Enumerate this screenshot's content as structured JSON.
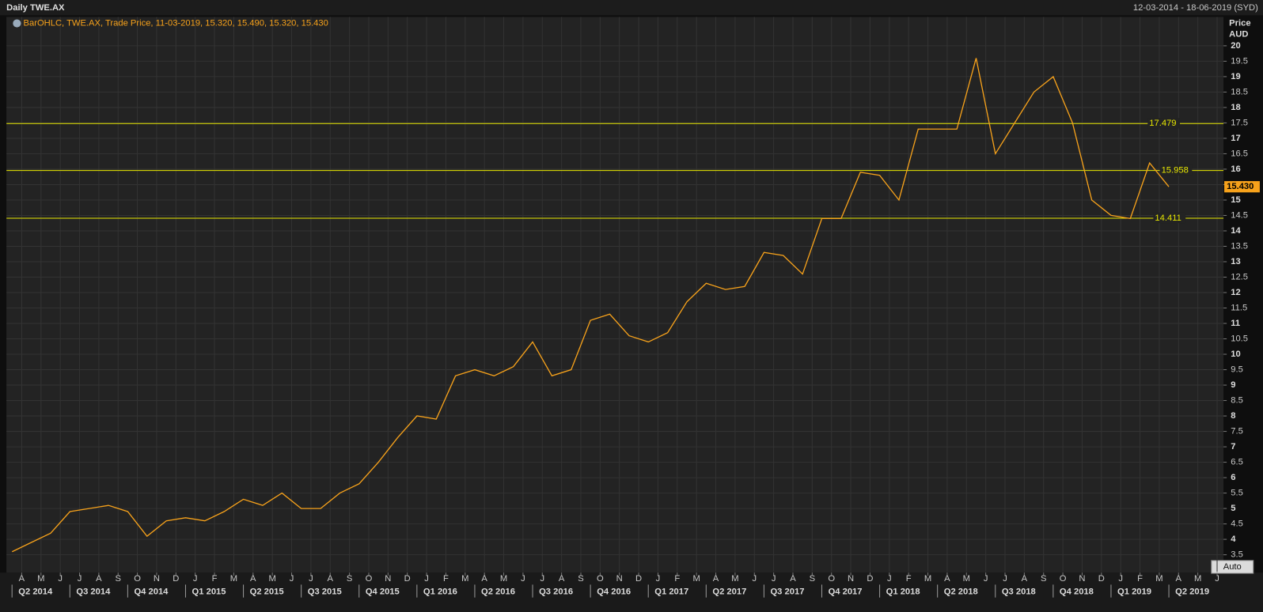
{
  "chart_data": {
    "type": "line",
    "title": "Daily TWE.AX",
    "date_range": "12-03-2014 - 18-06-2019 (SYD)",
    "y_label": "Price",
    "y_unit": "AUD",
    "button": "Auto",
    "grid": true,
    "series": [
      {
        "name": "BarOHLC, TWE.AX, Trade Price, 11-03-2019, 15.320, 15.490, 15.320, 15.430",
        "color": "#f7a21b",
        "x": [
          "2014-03",
          "2014-04",
          "2014-05",
          "2014-06",
          "2014-07",
          "2014-08",
          "2014-09",
          "2014-10",
          "2014-11",
          "2014-12",
          "2015-01",
          "2015-02",
          "2015-03",
          "2015-04",
          "2015-05",
          "2015-06",
          "2015-07",
          "2015-08",
          "2015-09",
          "2015-10",
          "2015-11",
          "2015-12",
          "2016-01",
          "2016-02",
          "2016-03",
          "2016-04",
          "2016-05",
          "2016-06",
          "2016-07",
          "2016-08",
          "2016-09",
          "2016-10",
          "2016-11",
          "2016-12",
          "2017-01",
          "2017-02",
          "2017-03",
          "2017-04",
          "2017-05",
          "2017-06",
          "2017-07",
          "2017-08",
          "2017-09",
          "2017-10",
          "2017-11",
          "2017-12",
          "2018-01",
          "2018-02",
          "2018-03",
          "2018-04",
          "2018-05",
          "2018-06",
          "2018-07",
          "2018-08",
          "2018-09",
          "2018-10",
          "2018-11",
          "2018-12",
          "2019-01",
          "2019-02",
          "2019-03"
        ],
        "values": [
          3.6,
          3.9,
          4.2,
          4.9,
          5.0,
          5.1,
          4.9,
          4.1,
          4.6,
          4.7,
          4.6,
          4.9,
          5.3,
          5.1,
          5.5,
          5.0,
          5.0,
          5.5,
          5.8,
          6.5,
          7.3,
          8.0,
          7.9,
          9.3,
          9.5,
          9.3,
          9.6,
          10.4,
          9.3,
          9.5,
          11.1,
          11.3,
          10.6,
          10.4,
          10.7,
          11.7,
          12.3,
          12.1,
          12.2,
          13.3,
          13.2,
          12.6,
          14.4,
          14.4,
          15.9,
          15.8,
          15.0,
          17.3,
          17.3,
          17.3,
          19.6,
          16.5,
          17.5,
          18.5,
          19.0,
          17.5,
          15.0,
          14.5,
          14.4,
          16.2,
          15.43
        ]
      }
    ],
    "xlim": [
      "2014-03",
      "2019-07"
    ],
    "xticks": [
      {
        "value": "2014-04",
        "label": "A"
      },
      {
        "value": "2014-05",
        "label": "M"
      },
      {
        "value": "2014-06",
        "label": "J"
      },
      {
        "value": "2014-07",
        "label": "J"
      },
      {
        "value": "2014-08",
        "label": "A"
      },
      {
        "value": "2014-09",
        "label": "S"
      },
      {
        "value": "2014-10",
        "label": "O"
      },
      {
        "value": "2014-11",
        "label": "N"
      },
      {
        "value": "2014-12",
        "label": "D"
      },
      {
        "value": "2015-01",
        "label": "J"
      },
      {
        "value": "2015-02",
        "label": "F"
      },
      {
        "value": "2015-03",
        "label": "M"
      },
      {
        "value": "2015-04",
        "label": "A"
      },
      {
        "value": "2015-05",
        "label": "M"
      },
      {
        "value": "2015-06",
        "label": "J"
      },
      {
        "value": "2015-07",
        "label": "J"
      },
      {
        "value": "2015-08",
        "label": "A"
      },
      {
        "value": "2015-09",
        "label": "S"
      },
      {
        "value": "2015-10",
        "label": "O"
      },
      {
        "value": "2015-11",
        "label": "N"
      },
      {
        "value": "2015-12",
        "label": "D"
      },
      {
        "value": "2016-01",
        "label": "J"
      },
      {
        "value": "2016-02",
        "label": "F"
      },
      {
        "value": "2016-03",
        "label": "M"
      },
      {
        "value": "2016-04",
        "label": "A"
      },
      {
        "value": "2016-05",
        "label": "M"
      },
      {
        "value": "2016-06",
        "label": "J"
      },
      {
        "value": "2016-07",
        "label": "J"
      },
      {
        "value": "2016-08",
        "label": "A"
      },
      {
        "value": "2016-09",
        "label": "S"
      },
      {
        "value": "2016-10",
        "label": "O"
      },
      {
        "value": "2016-11",
        "label": "N"
      },
      {
        "value": "2016-12",
        "label": "D"
      },
      {
        "value": "2017-01",
        "label": "J"
      },
      {
        "value": "2017-02",
        "label": "F"
      },
      {
        "value": "2017-03",
        "label": "M"
      },
      {
        "value": "2017-04",
        "label": "A"
      },
      {
        "value": "2017-05",
        "label": "M"
      },
      {
        "value": "2017-06",
        "label": "J"
      },
      {
        "value": "2017-07",
        "label": "J"
      },
      {
        "value": "2017-08",
        "label": "A"
      },
      {
        "value": "2017-09",
        "label": "S"
      },
      {
        "value": "2017-10",
        "label": "O"
      },
      {
        "value": "2017-11",
        "label": "N"
      },
      {
        "value": "2017-12",
        "label": "D"
      },
      {
        "value": "2018-01",
        "label": "J"
      },
      {
        "value": "2018-02",
        "label": "F"
      },
      {
        "value": "2018-03",
        "label": "M"
      },
      {
        "value": "2018-04",
        "label": "A"
      },
      {
        "value": "2018-05",
        "label": "M"
      },
      {
        "value": "2018-06",
        "label": "J"
      },
      {
        "value": "2018-07",
        "label": "J"
      },
      {
        "value": "2018-08",
        "label": "A"
      },
      {
        "value": "2018-09",
        "label": "S"
      },
      {
        "value": "2018-10",
        "label": "O"
      },
      {
        "value": "2018-11",
        "label": "N"
      },
      {
        "value": "2018-12",
        "label": "D"
      },
      {
        "value": "2019-01",
        "label": "J"
      },
      {
        "value": "2019-02",
        "label": "F"
      },
      {
        "value": "2019-03",
        "label": "M"
      },
      {
        "value": "2019-04",
        "label": "A"
      },
      {
        "value": "2019-05",
        "label": "M"
      },
      {
        "value": "2019-06",
        "label": "J"
      }
    ],
    "quarters": [
      {
        "value": "2014-04",
        "label": "Q2 2014"
      },
      {
        "value": "2014-07",
        "label": "Q3 2014"
      },
      {
        "value": "2014-10",
        "label": "Q4 2014"
      },
      {
        "value": "2015-01",
        "label": "Q1 2015"
      },
      {
        "value": "2015-04",
        "label": "Q2 2015"
      },
      {
        "value": "2015-07",
        "label": "Q3 2015"
      },
      {
        "value": "2015-10",
        "label": "Q4 2015"
      },
      {
        "value": "2016-01",
        "label": "Q1 2016"
      },
      {
        "value": "2016-04",
        "label": "Q2 2016"
      },
      {
        "value": "2016-07",
        "label": "Q3 2016"
      },
      {
        "value": "2016-10",
        "label": "Q4 2016"
      },
      {
        "value": "2017-01",
        "label": "Q1 2017"
      },
      {
        "value": "2017-04",
        "label": "Q2 2017"
      },
      {
        "value": "2017-07",
        "label": "Q3 2017"
      },
      {
        "value": "2017-10",
        "label": "Q4 2017"
      },
      {
        "value": "2018-01",
        "label": "Q1 2018"
      },
      {
        "value": "2018-04",
        "label": "Q2 2018"
      },
      {
        "value": "2018-07",
        "label": "Q3 2018"
      },
      {
        "value": "2018-10",
        "label": "Q4 2018"
      },
      {
        "value": "2019-01",
        "label": "Q1 2019"
      },
      {
        "value": "2019-04",
        "label": "Q2 2019"
      }
    ],
    "ylim": [
      2.95,
      20.44
    ],
    "yticks": [
      3.5,
      4,
      4.5,
      5,
      5.5,
      6,
      6.5,
      7,
      7.5,
      8,
      8.5,
      9,
      9.5,
      10,
      10.5,
      11,
      11.5,
      12,
      12.5,
      13,
      13.5,
      14,
      14.5,
      15,
      15.5,
      16,
      16.5,
      17,
      17.5,
      18,
      18.5,
      19,
      19.5,
      20
    ],
    "levels": [
      17.479,
      15.958,
      14.411
    ],
    "level_color": "#e8e800",
    "last_price": {
      "value": 15.43,
      "label": "15.430"
    }
  }
}
